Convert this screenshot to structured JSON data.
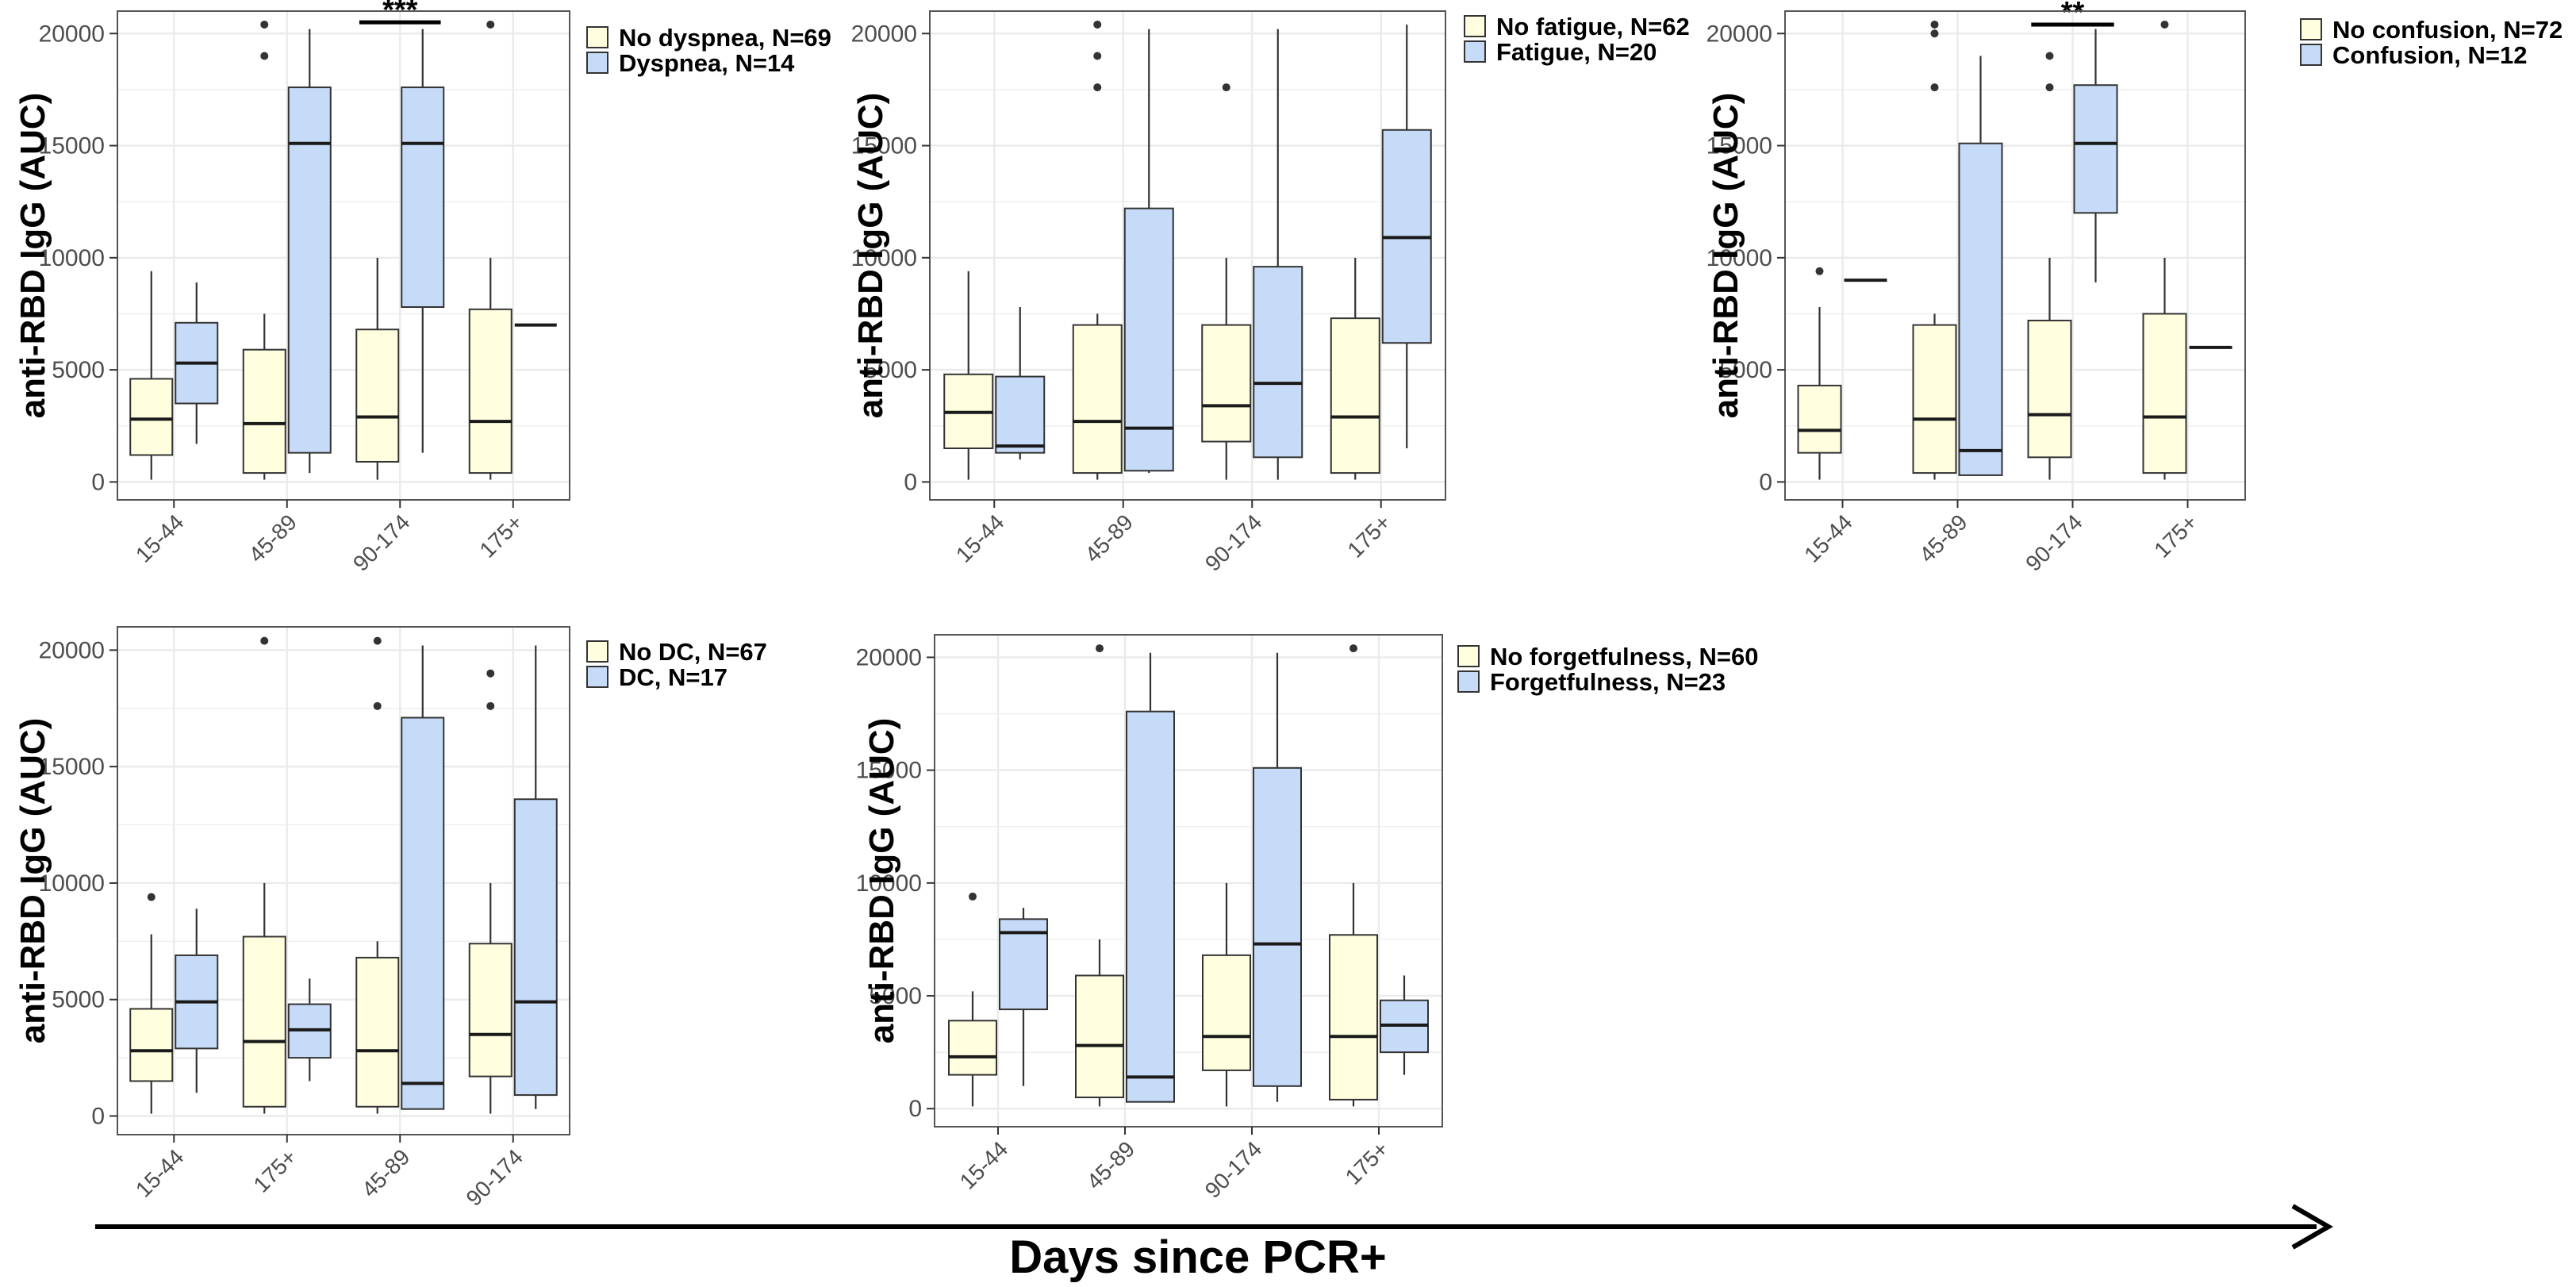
{
  "x_axis_label": "Days since PCR+",
  "colors": {
    "group_no": "#ffffe0",
    "group_yes": "#c6dbf7",
    "panel_border": "#555555",
    "grid": "#ebebeb",
    "line": "#333333"
  },
  "chart_data": [
    {
      "type": "boxplot",
      "ylabel": "anti-RBD IgG (AUC)",
      "yticks": [
        0,
        5000,
        10000,
        15000,
        20000
      ],
      "ylim": [
        -800,
        21000
      ],
      "categories": [
        "15-44",
        "45-89",
        "90-174",
        "175+"
      ],
      "legend": [
        "No dyspnea, N=69",
        "Dyspnea, N=14"
      ],
      "significance": [
        {
          "category": "90-174",
          "label": "***",
          "y": 20500
        }
      ],
      "boxes": [
        {
          "cat": 0,
          "group": 0,
          "q1": 1200,
          "median": 2800,
          "q3": 4600,
          "low": 100,
          "high": 9400,
          "outliers": []
        },
        {
          "cat": 0,
          "group": 1,
          "q1": 3500,
          "median": 5300,
          "q3": 7100,
          "low": 1700,
          "high": 8900,
          "outliers": []
        },
        {
          "cat": 1,
          "group": 0,
          "q1": 400,
          "median": 2600,
          "q3": 5900,
          "low": 100,
          "high": 7500,
          "outliers": [
            20400,
            19000
          ]
        },
        {
          "cat": 1,
          "group": 1,
          "q1": 1300,
          "median": 15100,
          "q3": 17600,
          "low": 400,
          "high": 20200,
          "outliers": []
        },
        {
          "cat": 2,
          "group": 0,
          "q1": 900,
          "median": 2900,
          "q3": 6800,
          "low": 100,
          "high": 10000,
          "outliers": []
        },
        {
          "cat": 2,
          "group": 1,
          "q1": 7800,
          "median": 15100,
          "q3": 17600,
          "low": 1300,
          "high": 20200,
          "outliers": []
        },
        {
          "cat": 3,
          "group": 0,
          "q1": 400,
          "median": 2700,
          "q3": 7700,
          "low": 100,
          "high": 10000,
          "outliers": [
            20400
          ]
        },
        {
          "cat": 3,
          "group": 1,
          "q1": 7000,
          "median": 7000,
          "q3": 7000,
          "low": 7000,
          "high": 7000,
          "outliers": []
        }
      ]
    },
    {
      "type": "boxplot",
      "ylabel": "anti-RBD IgG (AUC)",
      "yticks": [
        0,
        5000,
        10000,
        15000,
        20000
      ],
      "ylim": [
        -800,
        21000
      ],
      "categories": [
        "15-44",
        "45-89",
        "90-174",
        "175+"
      ],
      "legend": [
        "No fatigue, N=62",
        "Fatigue, N=20"
      ],
      "significance": [],
      "boxes": [
        {
          "cat": 0,
          "group": 0,
          "q1": 1500,
          "median": 3100,
          "q3": 4800,
          "low": 100,
          "high": 9400,
          "outliers": []
        },
        {
          "cat": 0,
          "group": 1,
          "q1": 1300,
          "median": 1600,
          "q3": 4700,
          "low": 1000,
          "high": 7800,
          "outliers": []
        },
        {
          "cat": 1,
          "group": 0,
          "q1": 400,
          "median": 2700,
          "q3": 7000,
          "low": 100,
          "high": 7500,
          "outliers": [
            20400,
            19000,
            17600
          ]
        },
        {
          "cat": 1,
          "group": 1,
          "q1": 500,
          "median": 2400,
          "q3": 12200,
          "low": 400,
          "high": 20200,
          "outliers": []
        },
        {
          "cat": 2,
          "group": 0,
          "q1": 1800,
          "median": 3400,
          "q3": 7000,
          "low": 100,
          "high": 10000,
          "outliers": [
            17600
          ]
        },
        {
          "cat": 2,
          "group": 1,
          "q1": 1100,
          "median": 4400,
          "q3": 9600,
          "low": 100,
          "high": 20200,
          "outliers": []
        },
        {
          "cat": 3,
          "group": 0,
          "q1": 400,
          "median": 2900,
          "q3": 7300,
          "low": 100,
          "high": 10000,
          "outliers": []
        },
        {
          "cat": 3,
          "group": 1,
          "q1": 6200,
          "median": 10900,
          "q3": 15700,
          "low": 1500,
          "high": 20400,
          "outliers": []
        }
      ]
    },
    {
      "type": "boxplot",
      "ylabel": "anti-RBD IgG (AUC)",
      "yticks": [
        0,
        5000,
        10000,
        15000,
        20000
      ],
      "ylim": [
        -800,
        21000
      ],
      "categories": [
        "15-44",
        "45-89",
        "90-174",
        "175+"
      ],
      "legend": [
        "No confusion, N=72",
        "Confusion, N=12"
      ],
      "significance": [
        {
          "category": "90-174",
          "label": "**",
          "y": 20400
        }
      ],
      "boxes": [
        {
          "cat": 0,
          "group": 0,
          "q1": 1300,
          "median": 2300,
          "q3": 4300,
          "low": 100,
          "high": 7800,
          "outliers": [
            9400
          ]
        },
        {
          "cat": 0,
          "group": 1,
          "q1": 9000,
          "median": 9000,
          "q3": 9000,
          "low": 9000,
          "high": 9000,
          "outliers": []
        },
        {
          "cat": 1,
          "group": 0,
          "q1": 400,
          "median": 2800,
          "q3": 7000,
          "low": 100,
          "high": 7500,
          "outliers": [
            20400,
            20000,
            17600
          ]
        },
        {
          "cat": 1,
          "group": 1,
          "q1": 300,
          "median": 1400,
          "q3": 15100,
          "low": 300,
          "high": 19000,
          "outliers": []
        },
        {
          "cat": 2,
          "group": 0,
          "q1": 1100,
          "median": 3000,
          "q3": 7200,
          "low": 100,
          "high": 10000,
          "outliers": [
            19000,
            17600
          ]
        },
        {
          "cat": 2,
          "group": 1,
          "q1": 12000,
          "median": 15100,
          "q3": 17700,
          "low": 8900,
          "high": 20200,
          "outliers": []
        },
        {
          "cat": 3,
          "group": 0,
          "q1": 400,
          "median": 2900,
          "q3": 7500,
          "low": 100,
          "high": 10000,
          "outliers": [
            20400
          ]
        },
        {
          "cat": 3,
          "group": 1,
          "q1": 6000,
          "median": 6000,
          "q3": 6000,
          "low": 6000,
          "high": 6000,
          "outliers": []
        }
      ]
    },
    {
      "type": "boxplot",
      "ylabel": "anti-RBD IgG (AUC)",
      "yticks": [
        0,
        5000,
        10000,
        15000,
        20000
      ],
      "ylim": [
        -800,
        21000
      ],
      "categories": [
        "15-44",
        "175+",
        "45-89",
        "90-174"
      ],
      "legend": [
        "No DC, N=67",
        "DC, N=17"
      ],
      "significance": [],
      "boxes": [
        {
          "cat": 0,
          "group": 0,
          "q1": 1500,
          "median": 2800,
          "q3": 4600,
          "low": 100,
          "high": 7800,
          "outliers": [
            9400
          ]
        },
        {
          "cat": 0,
          "group": 1,
          "q1": 2900,
          "median": 4900,
          "q3": 6900,
          "low": 1000,
          "high": 8900,
          "outliers": []
        },
        {
          "cat": 1,
          "group": 0,
          "q1": 400,
          "median": 3200,
          "q3": 7700,
          "low": 100,
          "high": 10000,
          "outliers": [
            20400
          ]
        },
        {
          "cat": 1,
          "group": 1,
          "q1": 2500,
          "median": 3700,
          "q3": 4800,
          "low": 1500,
          "high": 5900,
          "outliers": []
        },
        {
          "cat": 2,
          "group": 0,
          "q1": 400,
          "median": 2800,
          "q3": 6800,
          "low": 100,
          "high": 7500,
          "outliers": [
            20400,
            17600
          ]
        },
        {
          "cat": 2,
          "group": 1,
          "q1": 300,
          "median": 1400,
          "q3": 17100,
          "low": 300,
          "high": 20200,
          "outliers": []
        },
        {
          "cat": 3,
          "group": 0,
          "q1": 1700,
          "median": 3500,
          "q3": 7400,
          "low": 100,
          "high": 10000,
          "outliers": [
            19000,
            17600
          ]
        },
        {
          "cat": 3,
          "group": 1,
          "q1": 900,
          "median": 4900,
          "q3": 13600,
          "low": 300,
          "high": 20200,
          "outliers": []
        }
      ]
    },
    {
      "type": "boxplot",
      "ylabel": "anti-RBD IgG (AUC)",
      "yticks": [
        0,
        5000,
        10000,
        15000,
        20000
      ],
      "ylim": [
        -800,
        21000
      ],
      "categories": [
        "15-44",
        "45-89",
        "90-174",
        "175+"
      ],
      "legend": [
        "No forgetfulness, N=60",
        "Forgetfulness, N=23"
      ],
      "significance": [],
      "boxes": [
        {
          "cat": 0,
          "group": 0,
          "q1": 1500,
          "median": 2300,
          "q3": 3900,
          "low": 100,
          "high": 5200,
          "outliers": [
            9400
          ]
        },
        {
          "cat": 0,
          "group": 1,
          "q1": 4400,
          "median": 7800,
          "q3": 8400,
          "low": 1000,
          "high": 8900,
          "outliers": []
        },
        {
          "cat": 1,
          "group": 0,
          "q1": 500,
          "median": 2800,
          "q3": 5900,
          "low": 100,
          "high": 7500,
          "outliers": [
            20400
          ]
        },
        {
          "cat": 1,
          "group": 1,
          "q1": 300,
          "median": 1400,
          "q3": 17600,
          "low": 300,
          "high": 20200,
          "outliers": []
        },
        {
          "cat": 2,
          "group": 0,
          "q1": 1700,
          "median": 3200,
          "q3": 6800,
          "low": 100,
          "high": 10000,
          "outliers": []
        },
        {
          "cat": 2,
          "group": 1,
          "q1": 1000,
          "median": 7300,
          "q3": 15100,
          "low": 300,
          "high": 20200,
          "outliers": []
        },
        {
          "cat": 3,
          "group": 0,
          "q1": 400,
          "median": 3200,
          "q3": 7700,
          "low": 100,
          "high": 10000,
          "outliers": [
            20400
          ]
        },
        {
          "cat": 3,
          "group": 1,
          "q1": 2500,
          "median": 3700,
          "q3": 4800,
          "low": 1500,
          "high": 5900,
          "outliers": []
        }
      ]
    }
  ]
}
